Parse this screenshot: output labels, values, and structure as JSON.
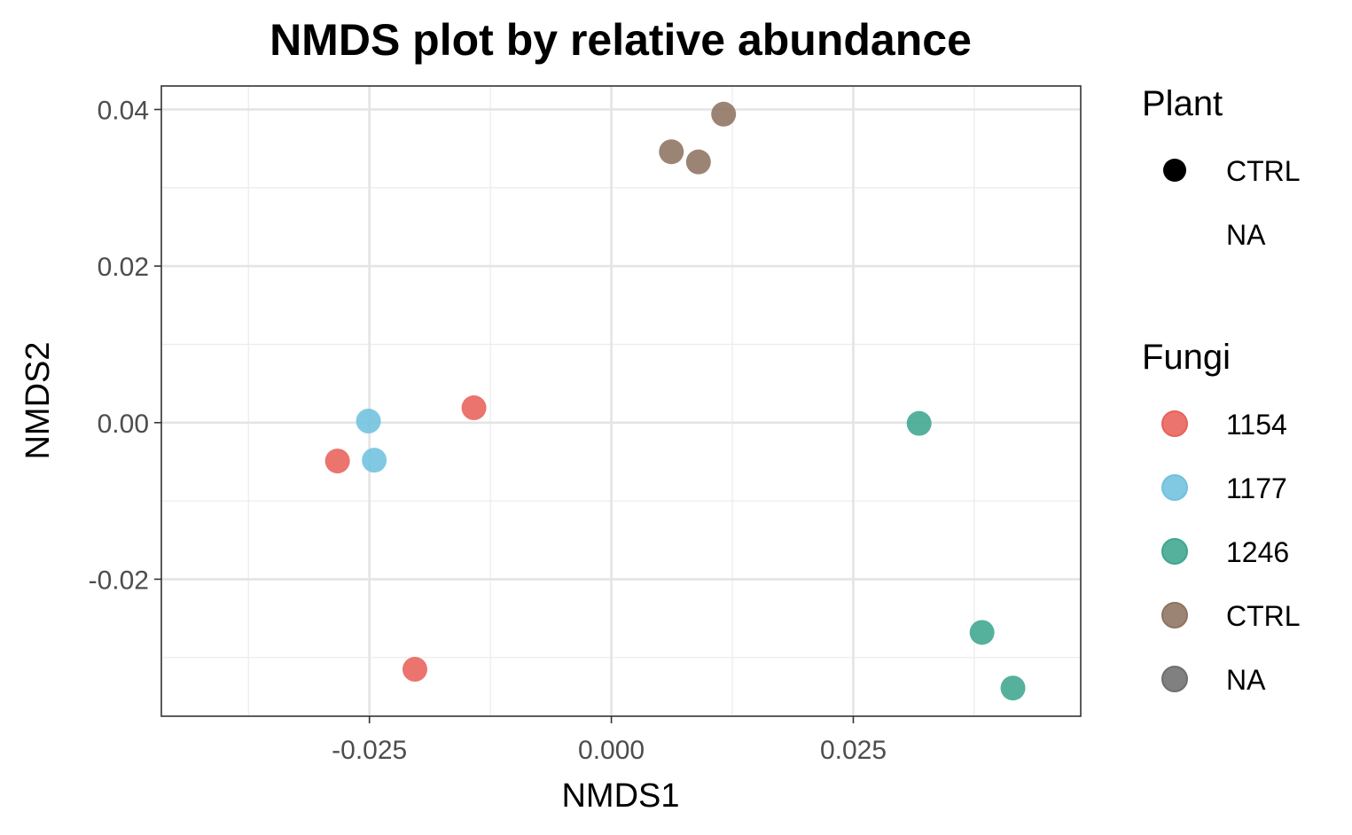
{
  "chart_data": {
    "type": "scatter",
    "title": "NMDS plot by relative abundance",
    "xlabel": "NMDS1",
    "ylabel": "NMDS2",
    "xlim": [
      -0.0465,
      0.0485
    ],
    "ylim": [
      -0.0375,
      0.043
    ],
    "xticks": [
      -0.025,
      0.0,
      0.025
    ],
    "xtick_labels": [
      "-0.025",
      "0.000",
      "0.025"
    ],
    "yticks": [
      -0.02,
      0.0,
      0.02,
      0.04
    ],
    "ytick_labels": [
      "-0.02",
      "0.00",
      "0.02",
      "0.04"
    ],
    "grid": true,
    "legend_position": "right",
    "series": [
      {
        "name": "1154",
        "color": "#E8615A",
        "x": [
          -0.0283,
          -0.0142,
          -0.0203
        ],
        "y": [
          -0.0049,
          0.0019,
          -0.0315
        ]
      },
      {
        "name": "1177",
        "color": "#6FC1DE",
        "x": [
          -0.0251,
          -0.0245
        ],
        "y": [
          0.0002,
          -0.0048
        ]
      },
      {
        "name": "1246",
        "color": "#3FA68E",
        "x": [
          0.0318,
          0.0383,
          0.0415
        ],
        "y": [
          -0.0001,
          -0.0268,
          -0.0339
        ]
      },
      {
        "name": "CTRL",
        "color": "#8E7361",
        "x": [
          0.0062,
          0.009,
          0.0116
        ],
        "y": [
          0.0346,
          0.0333,
          0.0394
        ]
      }
    ],
    "legends": [
      {
        "title": "Plant",
        "entries": [
          {
            "label": "CTRL",
            "marker": "filled-circle",
            "color": "#000000"
          },
          {
            "label": "NA",
            "marker": "none",
            "color": ""
          }
        ]
      },
      {
        "title": "Fungi",
        "entries": [
          {
            "label": "1154",
            "marker": "circle",
            "color": "#E8615A"
          },
          {
            "label": "1177",
            "marker": "circle",
            "color": "#6FC1DE"
          },
          {
            "label": "1246",
            "marker": "circle",
            "color": "#3FA68E"
          },
          {
            "label": "CTRL",
            "marker": "circle",
            "color": "#8E7361"
          },
          {
            "label": "NA",
            "marker": "circle",
            "color": "#6E6E6E"
          }
        ]
      }
    ]
  }
}
